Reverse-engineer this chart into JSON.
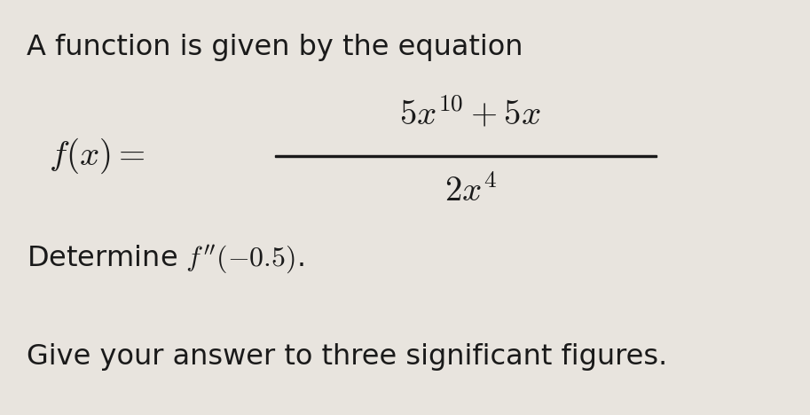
{
  "background_color": "#e8e4de",
  "text_color": "#1a1a1a",
  "line1": "A function is given by the equation",
  "line1_fontsize": 23,
  "fx_label": "$f(x) =$",
  "fx_fontsize": 28,
  "numerator": "$5x^{10} + 5x$",
  "numerator_fontsize": 28,
  "denominator": "$2x^4$",
  "denominator_fontsize": 28,
  "line3_prefix": "Determine ",
  "line3_math": "$f''(-0.5)$.",
  "line3_fontsize": 23,
  "line4": "Give your answer to three significant figures.",
  "line4_fontsize": 23
}
